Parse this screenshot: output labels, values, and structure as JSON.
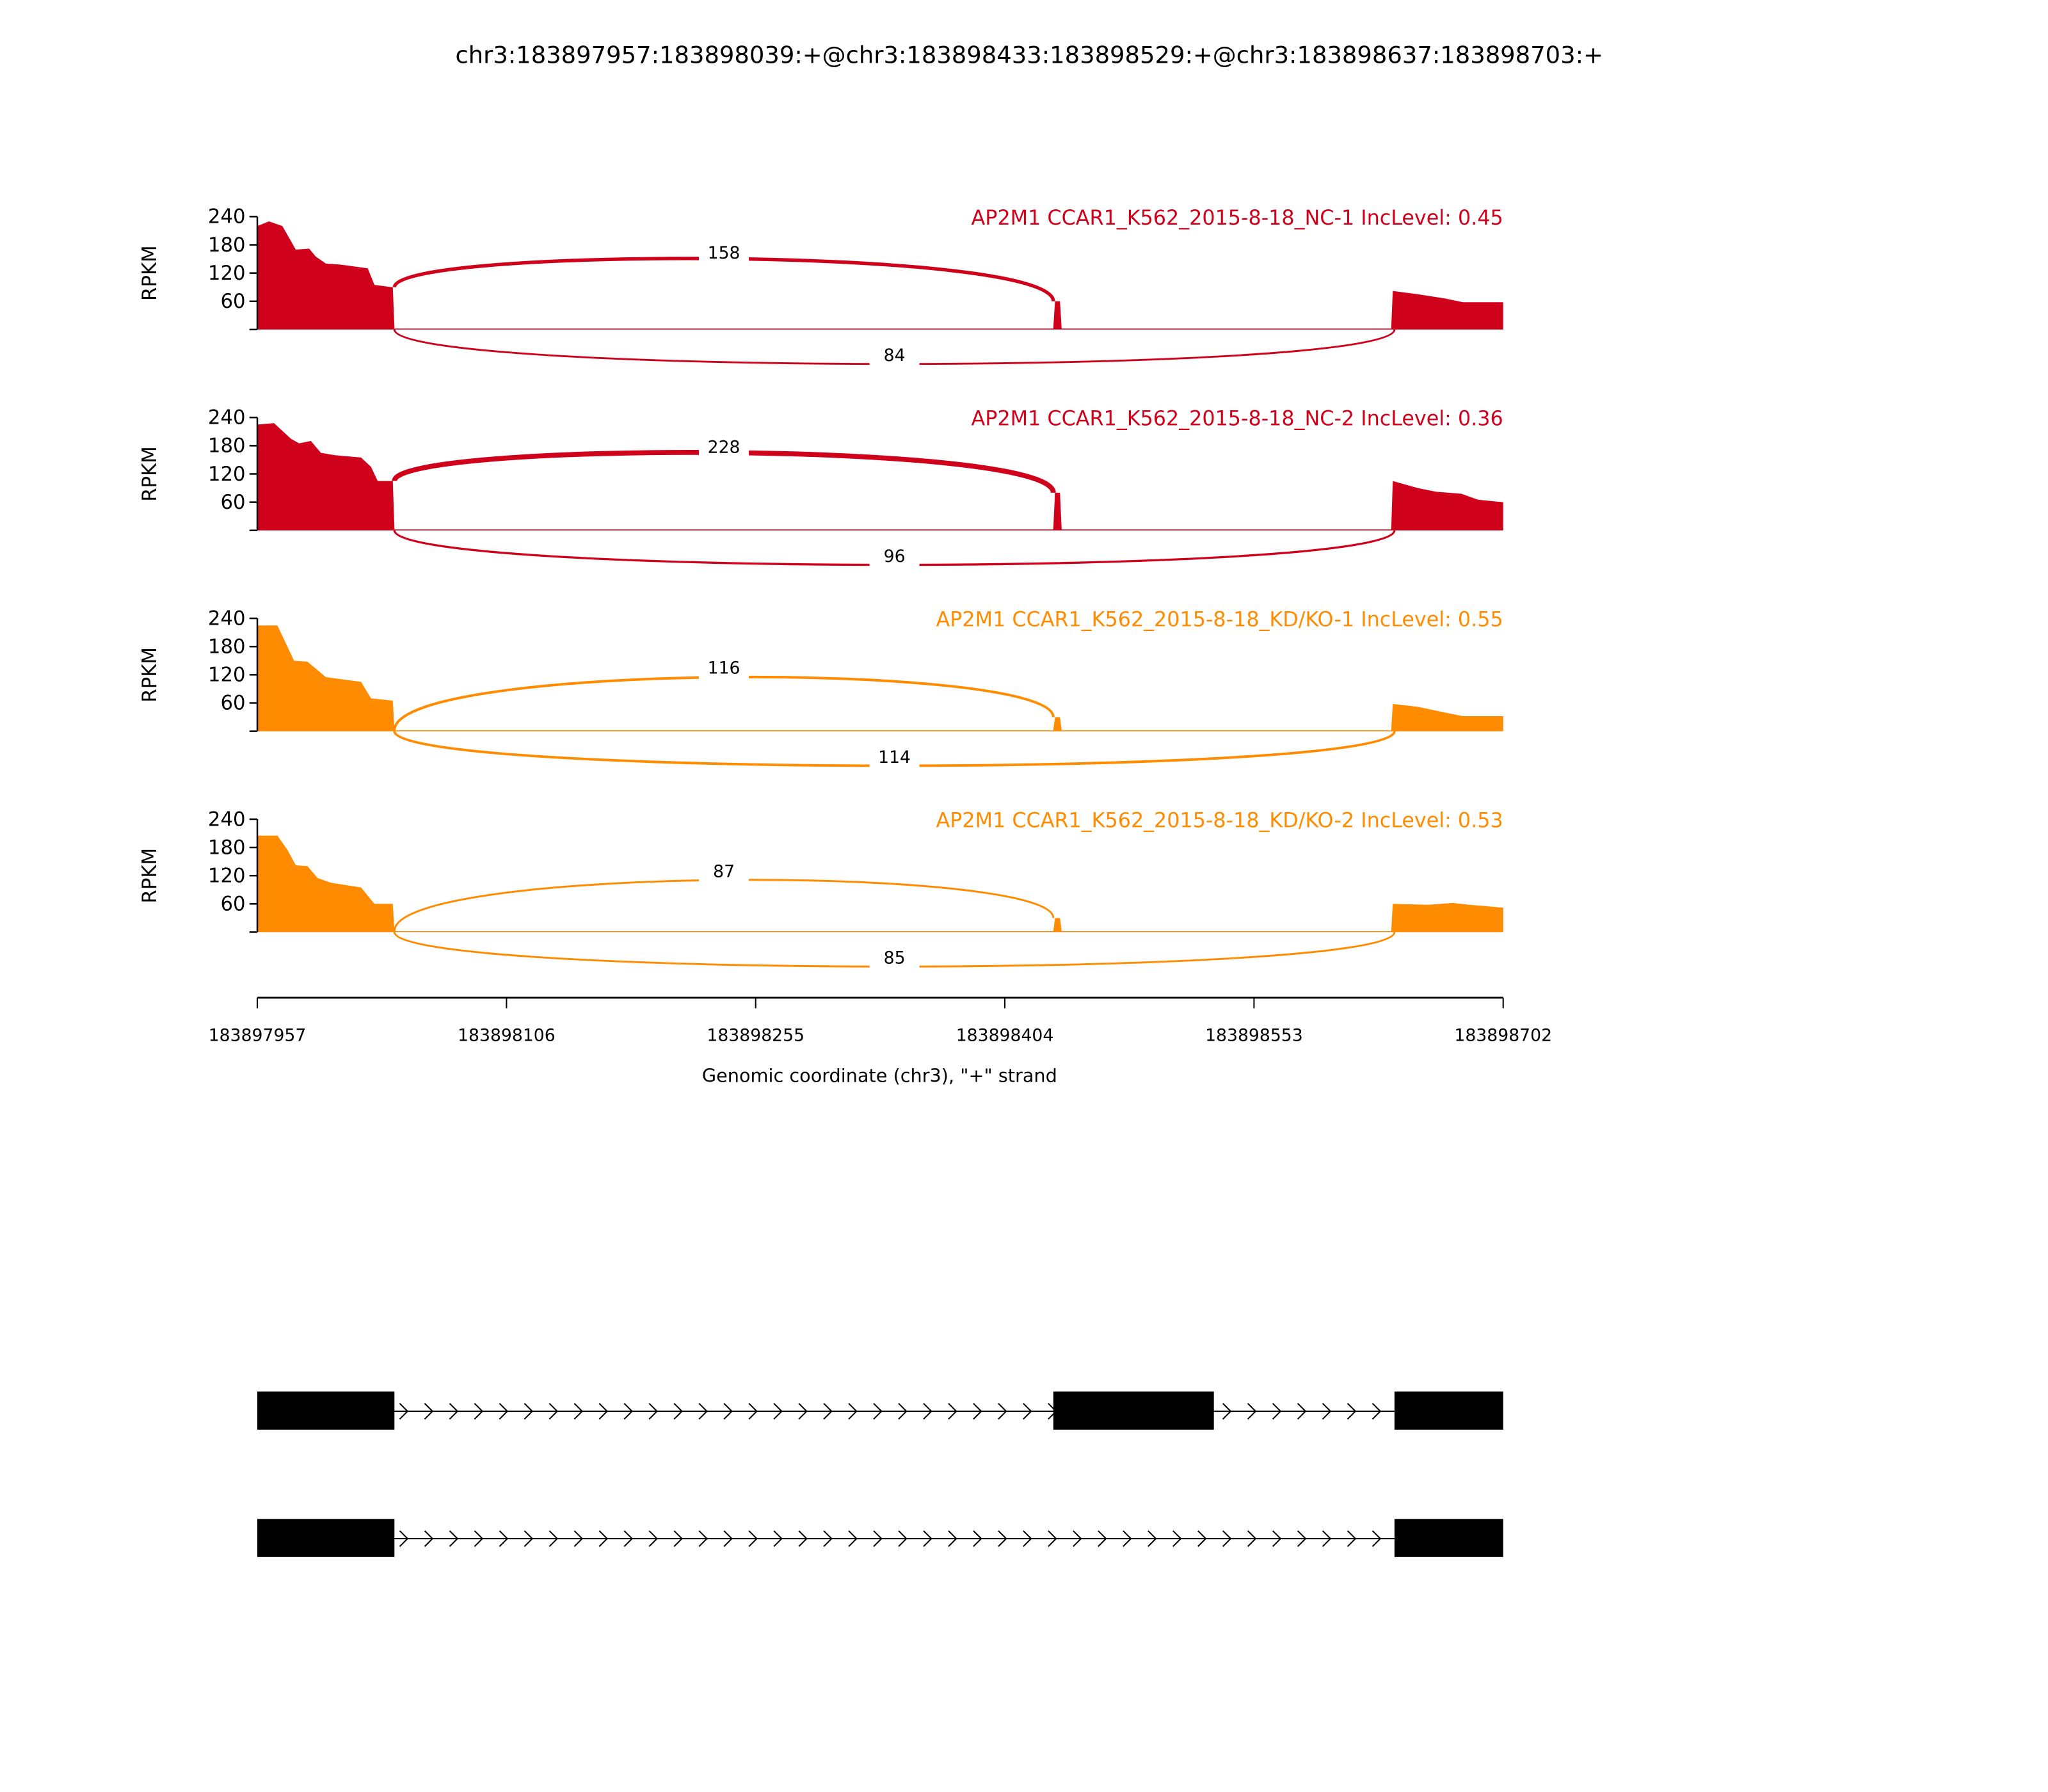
{
  "chart_data": {
    "type": "area",
    "title": "chr3:183897957:183898039:+@chr3:183898433:183898529:+@chr3:183898637:183898703:+",
    "xlabel": "Genomic coordinate (chr3), \"+\" strand",
    "ylabel": "RPKM",
    "xlim": [
      183897957,
      183898702
    ],
    "ylim": [
      0,
      240
    ],
    "x_ticks": [
      "183897957",
      "183898106",
      "183898255",
      "183898404",
      "183898553",
      "183898702"
    ],
    "y_ticks": [
      "60",
      "120",
      "180",
      "240"
    ],
    "offset_base": 183897957,
    "exons": [
      [
        183897957,
        183898039
      ],
      [
        183898433,
        183898529
      ],
      [
        183898637,
        183898702
      ]
    ],
    "tracks": [
      {
        "name": "AP2M1 CCAR1_K562_2015-8-18_NC-1 IncLevel: 0.45",
        "color": "#d0021b",
        "coverage": [
          [
            0,
            220
          ],
          [
            7,
            230
          ],
          [
            15,
            220
          ],
          [
            23,
            170
          ],
          [
            31,
            172
          ],
          [
            35,
            155
          ],
          [
            41,
            140
          ],
          [
            50,
            138
          ],
          [
            66,
            130
          ],
          [
            70,
            95
          ],
          [
            81,
            90
          ],
          [
            82,
            2
          ],
          [
            476,
            2
          ],
          [
            477,
            60
          ],
          [
            480,
            60
          ],
          [
            481,
            2
          ],
          [
            678,
            2
          ],
          [
            679,
            82
          ],
          [
            694,
            75
          ],
          [
            710,
            66
          ],
          [
            721,
            58
          ],
          [
            745,
            58
          ]
        ],
        "junctions": [
          {
            "from": 183898039,
            "to": 183898433,
            "count": "158",
            "side": "top",
            "height": 53
          },
          {
            "from": 183898039,
            "to": 183898637,
            "count": "84",
            "side": "bottom",
            "height": 25
          }
        ]
      },
      {
        "name": "AP2M1 CCAR1_K562_2015-8-18_NC-2 IncLevel: 0.36",
        "color": "#d0021b",
        "coverage": [
          [
            0,
            225
          ],
          [
            10,
            228
          ],
          [
            20,
            195
          ],
          [
            25,
            185
          ],
          [
            32,
            190
          ],
          [
            38,
            165
          ],
          [
            46,
            160
          ],
          [
            62,
            155
          ],
          [
            68,
            135
          ],
          [
            72,
            105
          ],
          [
            81,
            105
          ],
          [
            82,
            2
          ],
          [
            476,
            2
          ],
          [
            477,
            80
          ],
          [
            480,
            80
          ],
          [
            481,
            2
          ],
          [
            678,
            2
          ],
          [
            679,
            105
          ],
          [
            694,
            90
          ],
          [
            705,
            82
          ],
          [
            720,
            78
          ],
          [
            730,
            65
          ],
          [
            745,
            60
          ]
        ],
        "junctions": [
          {
            "from": 183898039,
            "to": 183898433,
            "count": "228",
            "side": "top",
            "height": 58
          },
          {
            "from": 183898039,
            "to": 183898637,
            "count": "96",
            "side": "bottom",
            "height": 25
          }
        ]
      },
      {
        "name": "AP2M1 CCAR1_K562_2015-8-18_KD/KO-1 IncLevel: 0.55",
        "color": "#ff8c00",
        "coverage": [
          [
            0,
            225
          ],
          [
            12,
            225
          ],
          [
            18,
            180
          ],
          [
            22,
            150
          ],
          [
            30,
            148
          ],
          [
            36,
            130
          ],
          [
            41,
            115
          ],
          [
            62,
            105
          ],
          [
            68,
            70
          ],
          [
            81,
            65
          ],
          [
            82,
            2
          ],
          [
            476,
            2
          ],
          [
            477,
            30
          ],
          [
            480,
            30
          ],
          [
            481,
            2
          ],
          [
            678,
            2
          ],
          [
            679,
            58
          ],
          [
            694,
            52
          ],
          [
            710,
            40
          ],
          [
            721,
            32
          ],
          [
            745,
            32
          ]
        ],
        "junctions": [
          {
            "from": 183898039,
            "to": 183898433,
            "count": "116",
            "side": "top",
            "height": 43
          },
          {
            "from": 183898039,
            "to": 183898637,
            "count": "114",
            "side": "bottom",
            "height": 25
          }
        ]
      },
      {
        "name": "AP2M1 CCAR1_K562_2015-8-18_KD/KO-2 IncLevel: 0.53",
        "color": "#ff8c00",
        "coverage": [
          [
            0,
            205
          ],
          [
            12,
            205
          ],
          [
            18,
            175
          ],
          [
            23,
            142
          ],
          [
            30,
            140
          ],
          [
            36,
            115
          ],
          [
            44,
            105
          ],
          [
            62,
            95
          ],
          [
            70,
            60
          ],
          [
            81,
            60
          ],
          [
            82,
            2
          ],
          [
            476,
            2
          ],
          [
            477,
            30
          ],
          [
            480,
            30
          ],
          [
            481,
            2
          ],
          [
            678,
            2
          ],
          [
            679,
            60
          ],
          [
            700,
            58
          ],
          [
            715,
            62
          ],
          [
            725,
            58
          ],
          [
            745,
            52
          ]
        ],
        "junctions": [
          {
            "from": 183898039,
            "to": 183898433,
            "count": "87",
            "side": "top",
            "height": 41
          },
          {
            "from": 183898039,
            "to": 183898637,
            "count": "85",
            "side": "bottom",
            "height": 25
          }
        ]
      }
    ],
    "gene_models": [
      {
        "exons": [
          [
            183897957,
            183898039
          ],
          [
            183898433,
            183898529
          ],
          [
            183898637,
            183898702
          ]
        ]
      },
      {
        "exons": [
          [
            183897957,
            183898039
          ],
          [
            183898637,
            183898702
          ]
        ]
      }
    ]
  }
}
